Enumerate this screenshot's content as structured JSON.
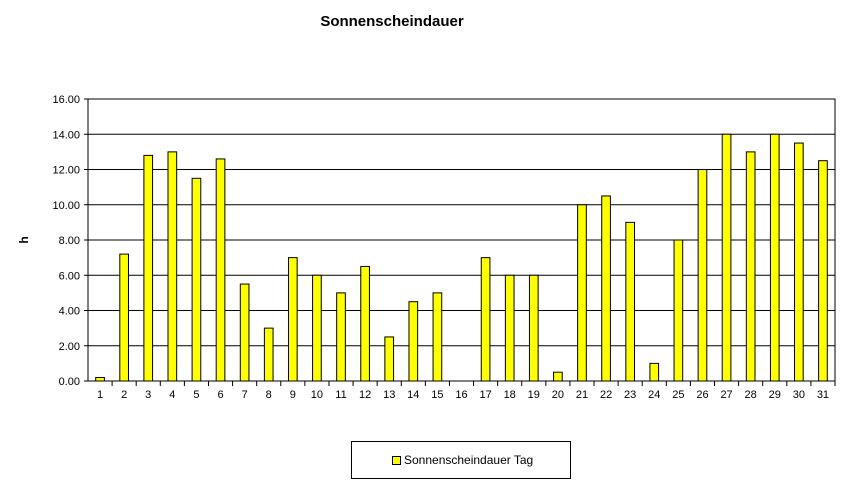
{
  "chart_data": {
    "type": "bar",
    "title": "Sonnenscheindauer",
    "ylabel": "h",
    "xlabel": "",
    "ylim": [
      0,
      16
    ],
    "yticks": [
      "0.00",
      "2.00",
      "4.00",
      "6.00",
      "8.00",
      "10.00",
      "12.00",
      "14.00",
      "16.00"
    ],
    "categories": [
      "1",
      "2",
      "3",
      "4",
      "5",
      "6",
      "7",
      "8",
      "9",
      "10",
      "11",
      "12",
      "13",
      "14",
      "15",
      "16",
      "17",
      "18",
      "19",
      "20",
      "21",
      "22",
      "23",
      "24",
      "25",
      "26",
      "27",
      "28",
      "29",
      "30",
      "31"
    ],
    "series": [
      {
        "name": "Sonnenscheindauer Tag",
        "color": "#ffff00",
        "values": [
          0.2,
          7.2,
          12.8,
          13.0,
          11.5,
          12.6,
          5.5,
          3.0,
          7.0,
          6.0,
          5.0,
          6.5,
          2.5,
          4.5,
          5.0,
          0.0,
          7.0,
          6.0,
          6.0,
          0.5,
          10.0,
          10.5,
          9.0,
          1.0,
          8.0,
          12.0,
          14.0,
          13.0,
          14.0,
          13.5,
          12.5
        ]
      }
    ],
    "grid": true,
    "legend": "bottom"
  }
}
